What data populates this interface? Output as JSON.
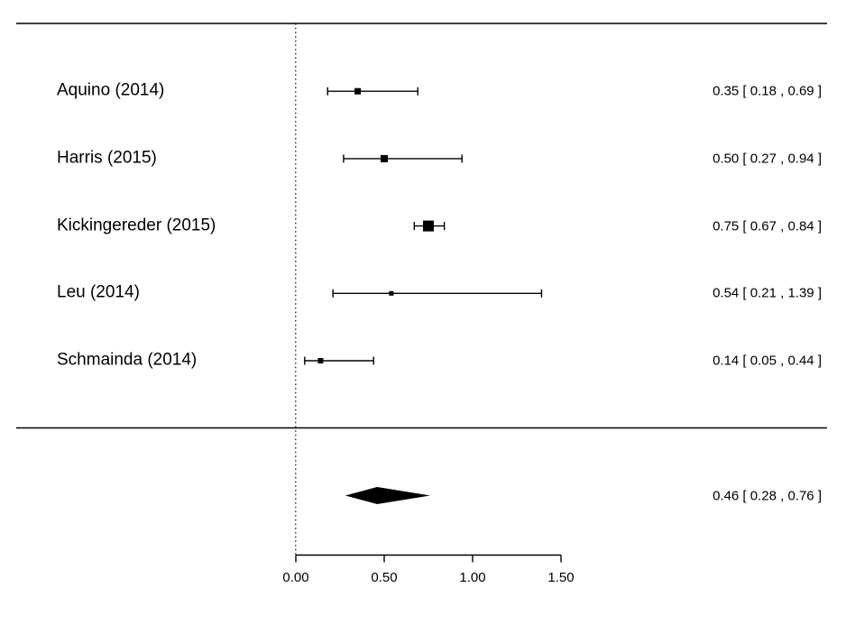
{
  "chart_data": {
    "type": "forest",
    "title": "",
    "xlabel": "",
    "x_axis": {
      "range": [
        0.0,
        1.5
      ],
      "ticks": [
        0.0,
        0.5,
        1.0,
        1.5
      ],
      "tick_labels": [
        "0.00",
        "0.50",
        "1.00",
        "1.50"
      ]
    },
    "reference_line": 0.0,
    "colors": {
      "foreground": "#000000",
      "background": "#ffffff"
    },
    "studies": [
      {
        "label": "Aquino (2014)",
        "estimate": 0.35,
        "ci_lower": 0.18,
        "ci_upper": 0.69,
        "ci_text": "0.35 [ 0.18 , 0.69 ]",
        "square_size": 7
      },
      {
        "label": "Harris (2015)",
        "estimate": 0.5,
        "ci_lower": 0.27,
        "ci_upper": 0.94,
        "ci_text": "0.50 [ 0.27 , 0.94 ]",
        "square_size": 8
      },
      {
        "label": "Kickingereder (2015)",
        "estimate": 0.75,
        "ci_lower": 0.67,
        "ci_upper": 0.84,
        "ci_text": "0.75 [ 0.67 , 0.84 ]",
        "square_size": 12
      },
      {
        "label": "Leu (2014)",
        "estimate": 0.54,
        "ci_lower": 0.21,
        "ci_upper": 1.39,
        "ci_text": "0.54 [ 0.21 , 1.39 ]",
        "square_size": 5
      },
      {
        "label": "Schmainda (2014)",
        "estimate": 0.14,
        "ci_lower": 0.05,
        "ci_upper": 0.44,
        "ci_text": "0.14 [ 0.05 , 0.44 ]",
        "square_size": 6
      }
    ],
    "summary": {
      "estimate": 0.46,
      "ci_lower": 0.28,
      "ci_upper": 0.76,
      "ci_text": "0.46 [ 0.28 , 0.76 ]"
    }
  }
}
